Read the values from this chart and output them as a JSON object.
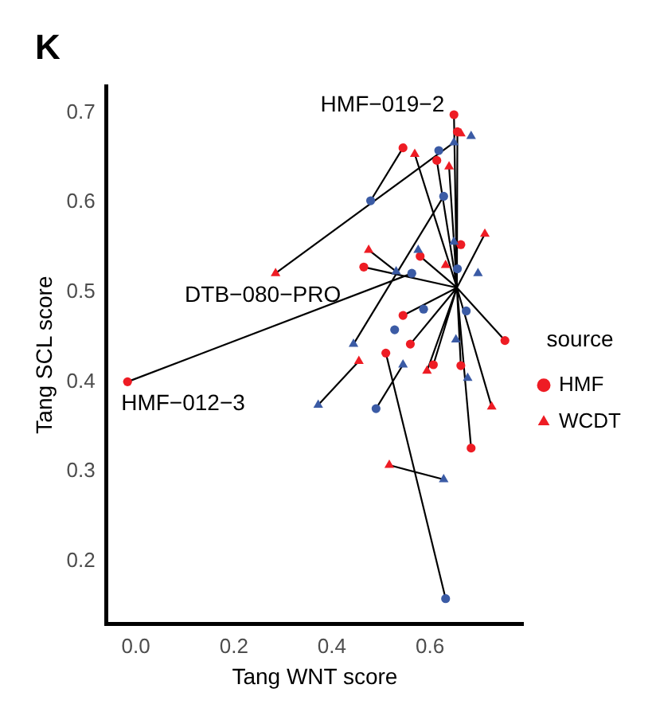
{
  "chart_data": {
    "type": "scatter",
    "xlabel": "Tang WNT score",
    "ylabel": "Tang SCL score",
    "legend_title": "source",
    "legend": "right",
    "grid": false,
    "xlim": [
      -0.06,
      0.79
    ],
    "ylim": [
      0.13,
      0.73
    ],
    "xticks": [
      {
        "value": 0,
        "label": "0.0"
      },
      0.2,
      0.4,
      0.6
    ],
    "yticks": [
      0.2,
      0.3,
      0.4,
      0.5,
      0.6,
      0.7
    ],
    "annotations": [
      "K",
      {
        "text": "HMF−019−2",
        "x": 0.649,
        "y": 0.698
      },
      {
        "text": "DTB−080−PRO",
        "x": 0.285,
        "y": 0.521
      },
      {
        "text": "HMF−012−3",
        "x": -0.017,
        "y": 0.4
      }
    ],
    "series": [
      {
        "type": "line",
        "color": "#000000",
        "marker": "none",
        "line_style": "solid",
        "x": [
          0.479,
          0.545,
          null,
          0.649,
          0.285,
          null,
          0.563,
          -0.017,
          null,
          0.475,
          0.531,
          null,
          0.372,
          0.455,
          null,
          0.49,
          0.545,
          null,
          0.517,
          0.628,
          null,
          0.51,
          0.632,
          null,
          0.444,
          0.628,
          null,
          0.655,
          0.684,
          null,
          0.655,
          0.726,
          null,
          0.655,
          0.753,
          null,
          0.655,
          0.712,
          null,
          0.655,
          0.607,
          null,
          0.655,
          0.663,
          null,
          0.655,
          0.594,
          null,
          0.655,
          0.545,
          null,
          0.655,
          0.649,
          null,
          0.655,
          0.656,
          null,
          0.655,
          0.569,
          null,
          0.655,
          0.639,
          null,
          0.655,
          0.465,
          null,
          0.655,
          0.56,
          null,
          0.655,
          0.614,
          null,
          0.655,
          0.58
        ],
        "values": [
          0.602,
          0.661,
          null,
          0.667,
          0.521,
          null,
          0.521,
          0.4,
          null,
          0.547,
          0.523,
          null,
          0.374,
          0.423,
          null,
          0.37,
          0.419,
          null,
          0.307,
          0.291,
          null,
          0.432,
          0.158,
          null,
          0.442,
          0.607,
          null,
          0.505,
          0.326,
          null,
          0.505,
          0.372,
          null,
          0.505,
          0.446,
          null,
          0.505,
          0.565,
          null,
          0.505,
          0.419,
          null,
          0.505,
          0.418,
          null,
          0.505,
          0.412,
          null,
          0.505,
          0.474,
          null,
          0.505,
          0.698,
          null,
          0.505,
          0.679,
          null,
          0.505,
          0.654,
          null,
          0.505,
          0.64,
          null,
          0.505,
          0.528,
          null,
          0.505,
          0.442,
          null,
          0.505,
          0.647,
          null,
          0.505,
          0.54
        ]
      },
      {
        "type": "scatter",
        "color": "#3b5ba5",
        "marker": "circle",
        "x": [
          0.479,
          0.563,
          0.528,
          0.618,
          0.628,
          0.587,
          0.49,
          0.632,
          0.674,
          0.656
        ],
        "values": [
          0.602,
          0.521,
          0.458,
          0.658,
          0.607,
          0.481,
          0.37,
          0.158,
          0.479,
          0.526
        ]
      },
      {
        "type": "scatter",
        "color": "#3b5ba5",
        "marker": "triangle",
        "x": [
          0.444,
          0.576,
          0.531,
          0.545,
          0.684,
          0.649,
          0.698,
          0.649,
          0.653,
          0.372,
          0.628,
          0.677
        ],
        "values": [
          0.442,
          0.547,
          0.523,
          0.419,
          0.674,
          0.667,
          0.521,
          0.556,
          0.447,
          0.374,
          0.291,
          0.404
        ]
      },
      {
        "type": "scatter",
        "name": "HMF",
        "color": "#ee1c24",
        "marker": "circle",
        "x": [
          0.649,
          0.545,
          0.656,
          0.465,
          0.58,
          0.545,
          -0.017,
          0.51,
          0.56,
          0.753,
          0.607,
          0.663,
          0.684,
          0.614,
          0.663
        ],
        "values": [
          0.698,
          0.661,
          0.679,
          0.528,
          0.54,
          0.474,
          0.4,
          0.432,
          0.442,
          0.446,
          0.419,
          0.418,
          0.326,
          0.647,
          0.553
        ]
      },
      {
        "type": "scatter",
        "name": "WCDT",
        "color": "#ee1c24",
        "marker": "triangle",
        "x": [
          0.569,
          0.285,
          0.475,
          0.455,
          0.594,
          0.639,
          0.712,
          0.663,
          0.632,
          0.517,
          0.726
        ],
        "values": [
          0.654,
          0.521,
          0.547,
          0.423,
          0.412,
          0.64,
          0.565,
          0.677,
          0.53,
          0.307,
          0.372
        ]
      }
    ]
  }
}
